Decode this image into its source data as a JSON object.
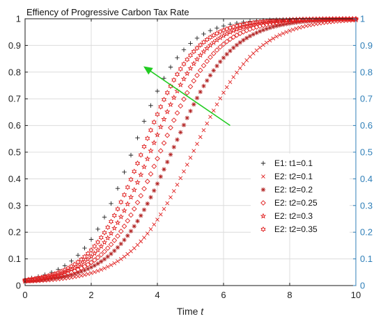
{
  "chart_data": {
    "type": "scatter",
    "title": "Effiency of Progressive Carbon Tax Rate",
    "xlabel_prefix": "Time ",
    "xlabel_var": "t",
    "ylabel": "",
    "xlim": [
      0,
      10
    ],
    "ylim": [
      0,
      1
    ],
    "xticks": [
      "0",
      "2",
      "4",
      "6",
      "8",
      "10"
    ],
    "yticks_left": [
      "0",
      "0.1",
      "0.2",
      "0.3",
      "0.4",
      "0.5",
      "0.6",
      "0.7",
      "0.8",
      "0.9",
      "1"
    ],
    "yticks_right": [
      "0",
      "0.1",
      "0.2",
      "0.3",
      "0.4",
      "0.5",
      "0.6",
      "0.7",
      "0.8",
      "0.9",
      "1"
    ],
    "grid": true,
    "legend_position": "center-right",
    "colors": {
      "black_marker": "#222222",
      "red_marker": "#e02020",
      "dark_red_marker": "#b22222",
      "right_axis": "#2f7fb8",
      "arrow": "#22cc22",
      "grid": "#dcdcdc"
    },
    "annotation": {
      "type": "arrow",
      "from": [
        6.2,
        0.6
      ],
      "to": [
        3.6,
        0.82
      ]
    },
    "series": [
      {
        "name": "E1: t1=0.1",
        "marker": "plus",
        "color": "#222222",
        "x_step": 0.2,
        "midpoint": 3.25,
        "steepness": 1.3
      },
      {
        "name": "E2: t2=0.1",
        "marker": "x",
        "color": "#e02020",
        "x_step": 0.1,
        "midpoint": 5.1,
        "steepness": 1.05
      },
      {
        "name": "E2: t2=0.2",
        "marker": "asterisk",
        "color": "#b22222",
        "x_step": 0.1,
        "midpoint": 4.45,
        "steepness": 1.13
      },
      {
        "name": "E2: t2=0.25",
        "marker": "diamond",
        "color": "#e02020",
        "x_step": 0.1,
        "midpoint": 4.1,
        "steepness": 1.18
      },
      {
        "name": "E2: t2=0.3",
        "marker": "pentagram",
        "color": "#e02020",
        "x_step": 0.1,
        "midpoint": 3.8,
        "steepness": 1.22
      },
      {
        "name": "E2: t2=0.35",
        "marker": "hexagram",
        "color": "#e02020",
        "x_step": 0.1,
        "midpoint": 3.55,
        "steepness": 1.26
      }
    ]
  }
}
